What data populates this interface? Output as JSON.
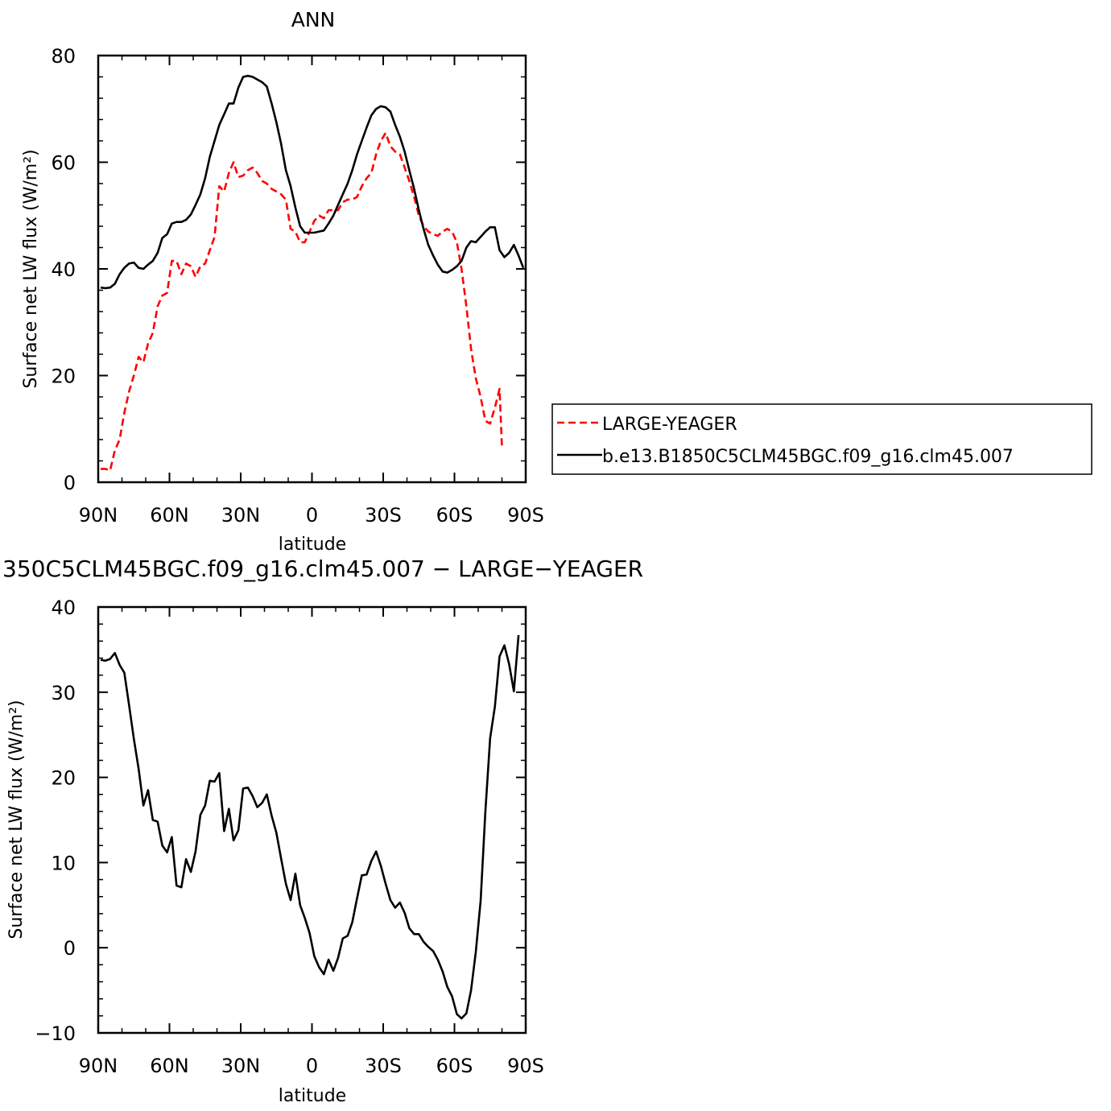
{
  "chart_data": [
    {
      "type": "line",
      "title": "ANN",
      "xlabel": "latitude",
      "ylabel": "Surface net LW flux (W/m²)",
      "x_ticks": [
        {
          "value": 90,
          "label": "90N"
        },
        {
          "value": 60,
          "label": "60N"
        },
        {
          "value": 30,
          "label": "30N"
        },
        {
          "value": 0,
          "label": "0"
        },
        {
          "value": -30,
          "label": "30S"
        },
        {
          "value": -60,
          "label": "60S"
        },
        {
          "value": -90,
          "label": "90S"
        }
      ],
      "xlim": [
        90,
        -90
      ],
      "ylim": [
        0,
        80
      ],
      "y_ticks": [
        0,
        20,
        40,
        60,
        80
      ],
      "legend_placement": "right",
      "series": [
        {
          "name": "LARGE-YEAGER",
          "color": "#ff0000",
          "dash": "dashed",
          "points": [
            [
              89,
              2.5
            ],
            [
              87,
              2.5
            ],
            [
              85,
              2.2
            ],
            [
              83,
              6
            ],
            [
              81,
              8
            ],
            [
              79,
              13
            ],
            [
              77,
              17
            ],
            [
              75,
              20
            ],
            [
              73,
              23.5
            ],
            [
              71,
              22.5
            ],
            [
              69,
              26
            ],
            [
              67,
              28
            ],
            [
              65,
              33
            ],
            [
              63,
              35
            ],
            [
              61,
              35.5
            ],
            [
              59,
              41.5
            ],
            [
              57,
              41.5
            ],
            [
              55,
              39
            ],
            [
              53,
              41
            ],
            [
              51,
              40.5
            ],
            [
              49,
              38.5
            ],
            [
              47,
              40.5
            ],
            [
              45,
              41
            ],
            [
              43,
              43.5
            ],
            [
              41,
              46
            ],
            [
              39,
              55.5
            ],
            [
              37,
              54.5
            ],
            [
              35,
              58
            ],
            [
              33,
              60
            ],
            [
              31,
              57.2
            ],
            [
              29,
              57.5
            ],
            [
              27,
              58.5
            ],
            [
              25,
              59
            ],
            [
              23,
              58
            ],
            [
              21,
              56.5
            ],
            [
              19,
              56
            ],
            [
              17,
              55
            ],
            [
              15,
              54.5
            ],
            [
              13,
              54
            ],
            [
              11,
              53
            ],
            [
              9,
              47.5
            ],
            [
              7,
              47
            ],
            [
              5,
              45
            ],
            [
              3,
              45
            ],
            [
              1,
              47
            ],
            [
              -1,
              49
            ],
            [
              -3,
              50
            ],
            [
              -5,
              49.5
            ],
            [
              -7,
              51
            ],
            [
              -9,
              51
            ],
            [
              -11,
              51
            ],
            [
              -13,
              52.5
            ],
            [
              -15,
              53
            ],
            [
              -17,
              53
            ],
            [
              -19,
              53.5
            ],
            [
              -21,
              55.5
            ],
            [
              -23,
              57
            ],
            [
              -25,
              58
            ],
            [
              -27,
              61.5
            ],
            [
              -29,
              64
            ],
            [
              -31,
              65.5
            ],
            [
              -33,
              63
            ],
            [
              -35,
              62
            ],
            [
              -37,
              61.5
            ],
            [
              -39,
              59
            ],
            [
              -41,
              56.5
            ],
            [
              -43,
              53.5
            ],
            [
              -45,
              50
            ],
            [
              -47,
              48
            ],
            [
              -49,
              47
            ],
            [
              -51,
              46.5
            ],
            [
              -53,
              46.2
            ],
            [
              -55,
              47
            ],
            [
              -57,
              47.5
            ],
            [
              -59,
              47
            ],
            [
              -61,
              45
            ],
            [
              -63,
              40
            ],
            [
              -65,
              33
            ],
            [
              -67,
              25
            ],
            [
              -69,
              19.5
            ],
            [
              -71,
              16
            ],
            [
              -73,
              11.5
            ],
            [
              -75,
              11
            ],
            [
              -77,
              14
            ],
            [
              -79,
              17.5
            ],
            [
              -80,
              6.5
            ]
          ]
        },
        {
          "name": "b.e13.B1850C5CLM45BGC.f09_g16.clm45.007",
          "color": "#000000",
          "dash": "solid",
          "points": [
            [
              89,
              36.5
            ],
            [
              87,
              36.4
            ],
            [
              85,
              36.5
            ],
            [
              83,
              37.2
            ],
            [
              81,
              39
            ],
            [
              79,
              40.2
            ],
            [
              77,
              41
            ],
            [
              75,
              41.2
            ],
            [
              73,
              40.2
            ],
            [
              71,
              40
            ],
            [
              69,
              40.8
            ],
            [
              67,
              41.5
            ],
            [
              65,
              43
            ],
            [
              63,
              45.8
            ],
            [
              61,
              46.5
            ],
            [
              59,
              48.5
            ],
            [
              57,
              48.8
            ],
            [
              55,
              48.8
            ],
            [
              53,
              49.2
            ],
            [
              51,
              50.2
            ],
            [
              49,
              52
            ],
            [
              47,
              54
            ],
            [
              45,
              57
            ],
            [
              43,
              61
            ],
            [
              41,
              64
            ],
            [
              39,
              67
            ],
            [
              37,
              69
            ],
            [
              35,
              71
            ],
            [
              33,
              71
            ],
            [
              31,
              74
            ],
            [
              29,
              76
            ],
            [
              27,
              76.2
            ],
            [
              25,
              76
            ],
            [
              23,
              75.5
            ],
            [
              21,
              75
            ],
            [
              19,
              74.2
            ],
            [
              17,
              71
            ],
            [
              15,
              67.5
            ],
            [
              13,
              63.5
            ],
            [
              11,
              58.5
            ],
            [
              9,
              55.5
            ],
            [
              7,
              51.5
            ],
            [
              5,
              48
            ],
            [
              3,
              46.8
            ],
            [
              1,
              46.8
            ],
            [
              -1,
              46.8
            ],
            [
              -3,
              47
            ],
            [
              -5,
              47.2
            ],
            [
              -7,
              48.5
            ],
            [
              -9,
              50
            ],
            [
              -11,
              52
            ],
            [
              -13,
              54
            ],
            [
              -15,
              56
            ],
            [
              -17,
              58.5
            ],
            [
              -19,
              61.5
            ],
            [
              -21,
              64
            ],
            [
              -23,
              66.5
            ],
            [
              -25,
              68.8
            ],
            [
              -27,
              70
            ],
            [
              -29,
              70.5
            ],
            [
              -31,
              70.3
            ],
            [
              -33,
              69.5
            ],
            [
              -35,
              67
            ],
            [
              -37,
              64.8
            ],
            [
              -39,
              62
            ],
            [
              -41,
              58.5
            ],
            [
              -43,
              55
            ],
            [
              -45,
              51
            ],
            [
              -47,
              47.5
            ],
            [
              -49,
              44.5
            ],
            [
              -51,
              42.5
            ],
            [
              -53,
              40.8
            ],
            [
              -55,
              39.5
            ],
            [
              -57,
              39.3
            ],
            [
              -59,
              39.8
            ],
            [
              -61,
              40.5
            ],
            [
              -63,
              41.5
            ],
            [
              -65,
              44
            ],
            [
              -67,
              45.2
            ],
            [
              -69,
              45
            ],
            [
              -71,
              46
            ],
            [
              -73,
              47
            ],
            [
              -75,
              47.8
            ],
            [
              -77,
              47.8
            ],
            [
              -79,
              43.5
            ],
            [
              -81,
              42.2
            ],
            [
              -83,
              43
            ],
            [
              -85,
              44.5
            ],
            [
              -87,
              42.5
            ],
            [
              -89,
              40.2
            ]
          ]
        }
      ]
    },
    {
      "type": "line",
      "title": "350C5CLM45BGC.f09_g16.clm45.007 − LARGE−YEAGER",
      "xlabel": "latitude",
      "ylabel": "Surface net LW flux (W/m²)",
      "x_ticks": [
        {
          "value": 90,
          "label": "90N"
        },
        {
          "value": 60,
          "label": "60N"
        },
        {
          "value": 30,
          "label": "30N"
        },
        {
          "value": 0,
          "label": "0"
        },
        {
          "value": -30,
          "label": "30S"
        },
        {
          "value": -60,
          "label": "60S"
        },
        {
          "value": -90,
          "label": "90S"
        }
      ],
      "xlim": [
        90,
        -90
      ],
      "ylim": [
        -10,
        40
      ],
      "y_ticks": [
        -10,
        0,
        10,
        20,
        30,
        40
      ],
      "series": [
        {
          "color": "#000000",
          "dash": "solid",
          "points": [
            [
              89,
              33.8
            ],
            [
              87,
              33.7
            ],
            [
              85,
              33.9
            ],
            [
              83,
              34.6
            ],
            [
              81,
              33.2
            ],
            [
              79,
              32.3
            ],
            [
              77,
              28.5
            ],
            [
              75,
              24.5
            ],
            [
              73,
              21
            ],
            [
              71,
              16.7
            ],
            [
              69,
              18.5
            ],
            [
              67,
              15
            ],
            [
              65,
              14.8
            ],
            [
              63,
              12
            ],
            [
              61,
              11.2
            ],
            [
              59,
              13
            ],
            [
              57,
              7.3
            ],
            [
              55,
              7.1
            ],
            [
              53,
              10.4
            ],
            [
              51,
              8.9
            ],
            [
              49,
              11.3
            ],
            [
              47,
              15.6
            ],
            [
              45,
              16.7
            ],
            [
              43,
              19.6
            ],
            [
              41,
              19.5
            ],
            [
              39,
              20.5
            ],
            [
              37,
              13.7
            ],
            [
              35,
              16.3
            ],
            [
              33,
              12.6
            ],
            [
              31,
              13.8
            ],
            [
              29,
              18.7
            ],
            [
              27,
              18.8
            ],
            [
              25,
              17.8
            ],
            [
              23,
              16.5
            ],
            [
              21,
              17
            ],
            [
              19,
              18
            ],
            [
              17,
              15.5
            ],
            [
              15,
              13.5
            ],
            [
              13,
              10.5
            ],
            [
              11,
              7.5
            ],
            [
              9,
              5.6
            ],
            [
              7,
              8.7
            ],
            [
              5,
              5
            ],
            [
              3,
              3.5
            ],
            [
              1,
              1.7
            ],
            [
              -1,
              -1
            ],
            [
              -3,
              -2.3
            ],
            [
              -5,
              -3.1
            ],
            [
              -7,
              -1.4
            ],
            [
              -9,
              -2.7
            ],
            [
              -11,
              -1.2
            ],
            [
              -13,
              1.1
            ],
            [
              -15,
              1.4
            ],
            [
              -17,
              3
            ],
            [
              -19,
              5.8
            ],
            [
              -21,
              8.5
            ],
            [
              -23,
              8.6
            ],
            [
              -25,
              10.2
            ],
            [
              -27,
              11.3
            ],
            [
              -29,
              9.6
            ],
            [
              -31,
              7.5
            ],
            [
              -33,
              5.6
            ],
            [
              -35,
              4.7
            ],
            [
              -37,
              5.3
            ],
            [
              -39,
              4.1
            ],
            [
              -41,
              2.3
            ],
            [
              -43,
              1.6
            ],
            [
              -45,
              1.6
            ],
            [
              -47,
              0.7
            ],
            [
              -49,
              0.1
            ],
            [
              -51,
              -0.4
            ],
            [
              -53,
              -1.4
            ],
            [
              -55,
              -2.8
            ],
            [
              -57,
              -4.6
            ],
            [
              -59,
              -5.7
            ],
            [
              -61,
              -7.8
            ],
            [
              -63,
              -8.3
            ],
            [
              -65,
              -7.7
            ],
            [
              -67,
              -5
            ],
            [
              -69,
              -0.5
            ],
            [
              -71,
              5.5
            ],
            [
              -73,
              16
            ],
            [
              -75,
              24.6
            ],
            [
              -77,
              28.3
            ],
            [
              -79,
              34.2
            ],
            [
              -81,
              35.5
            ],
            [
              -83,
              33.3
            ],
            [
              -85,
              30.1
            ],
            [
              -87,
              36.7
            ]
          ]
        }
      ]
    }
  ]
}
